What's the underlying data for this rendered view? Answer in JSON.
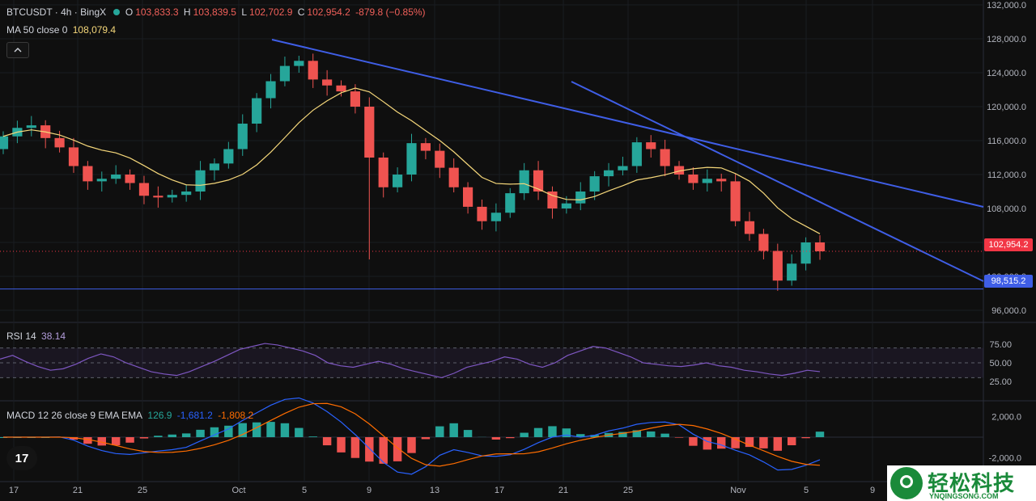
{
  "header": {
    "symbol": "BTCUSDT · 4h · BingX",
    "o_label": "O",
    "o_value": "103,833.3",
    "h_label": "H",
    "h_value": "103,839.5",
    "l_label": "L",
    "l_value": "102,702.9",
    "c_label": "C",
    "c_value": "102,954.2",
    "change": "-879.8 (−0.85%)",
    "ma_label": "MA 50 close 0",
    "ma_value": "108,079.4"
  },
  "rsi_legend": {
    "label": "RSI 14",
    "value": "38.14"
  },
  "macd_legend": {
    "label": "MACD 12 26 close 9 EMA EMA",
    "v1": "126.9",
    "v2": "-1,681.2",
    "v3": "-1,808.2"
  },
  "price_tags": {
    "last": "102,954.2",
    "level": "98,515.2"
  },
  "logo": {
    "text": "17"
  },
  "watermark": {
    "title": "轻松科技",
    "subtitle": "YNQINGSONG.COM"
  },
  "icons": {
    "collapse": "chevron-up-icon",
    "logo": "tradingview-logo-icon"
  },
  "colors": {
    "up": "#26a69a",
    "down": "#ef5350",
    "ma": "#f5d77a",
    "trend": "#3f5ee6",
    "rsi": "#7e57c2",
    "macd": "#2962ff",
    "signal": "#ff6d00"
  },
  "chart_data": [
    {
      "type": "candlestick",
      "title": "BTCUSDT · 4h · BingX",
      "x_ticks": [
        "17",
        "21",
        "25",
        "Oct",
        "5",
        "9",
        "13",
        "17",
        "21",
        "25",
        "Nov",
        "5",
        "9"
      ],
      "y_ticks": [
        "132,000.0",
        "128,000.0",
        "124,000.0",
        "120,000.0",
        "116,000.0",
        "112,000.0",
        "108,000.0",
        "104,000.0",
        "100,000.0",
        "96,000.0"
      ],
      "ylim": [
        96000,
        132000
      ],
      "series": [
        {
          "name": "MA 50 close 0",
          "last": 108079.4
        }
      ],
      "closes": [
        116500,
        117500,
        117800,
        116300,
        115200,
        113000,
        111200,
        111500,
        112000,
        111000,
        109500,
        109300,
        109600,
        110000,
        112500,
        113300,
        115000,
        118000,
        121000,
        123000,
        124800,
        125400,
        123200,
        122500,
        121800,
        120000,
        114000,
        110500,
        112000,
        115700,
        114800,
        112800,
        110500,
        108200,
        106500,
        107500,
        109800,
        112500,
        110000,
        108000,
        108600,
        110000,
        111800,
        112500,
        113000,
        115800,
        115000,
        113000,
        112000,
        111000,
        111500,
        111200,
        106500,
        105000,
        103000,
        99500,
        101500,
        104000,
        102954.2
      ],
      "horizontal_level": 98515.2,
      "last_price": 102954.2
    },
    {
      "type": "line",
      "title": "RSI 14",
      "y_ticks": [
        "75.00",
        "50.00",
        "25.00"
      ],
      "ylim": [
        0,
        100
      ],
      "bands": [
        30,
        50,
        70
      ],
      "last": 38.14,
      "values": [
        55,
        60,
        52,
        45,
        40,
        42,
        48,
        56,
        62,
        58,
        50,
        44,
        38,
        35,
        33,
        38,
        45,
        52,
        60,
        68,
        72,
        76,
        74,
        70,
        66,
        60,
        50,
        46,
        44,
        48,
        52,
        48,
        42,
        38,
        34,
        30,
        36,
        44,
        48,
        52,
        58,
        55,
        48,
        44,
        50,
        60,
        66,
        72,
        70,
        64,
        58,
        50,
        48,
        46,
        45,
        47,
        50,
        46,
        44,
        40,
        38,
        35,
        33,
        36,
        40,
        38.14
      ]
    },
    {
      "type": "bar",
      "title": "MACD 12 26 close 9 EMA EMA",
      "y_ticks": [
        "2,000.0",
        "-2,000.0"
      ],
      "ylim": [
        -3500,
        3500
      ],
      "series": [
        {
          "name": "MACD",
          "last": -1681.2
        },
        {
          "name": "Signal",
          "last": -1808.2
        },
        {
          "name": "Histogram",
          "last": 126.9
        }
      ]
    }
  ]
}
